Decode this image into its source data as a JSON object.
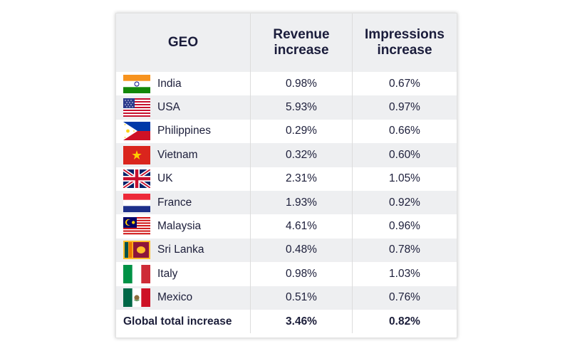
{
  "table": {
    "headers": {
      "geo": "GEO",
      "revenue": "Revenue increase",
      "impressions": "Impressions increase"
    },
    "rows": [
      {
        "country": "India",
        "flag": "india-flag-icon",
        "revenue": "0.98%",
        "impressions": "0.67%"
      },
      {
        "country": "USA",
        "flag": "usa-flag-icon",
        "revenue": "5.93%",
        "impressions": "0.97%"
      },
      {
        "country": "Philippines",
        "flag": "philippines-flag-icon",
        "revenue": "0.29%",
        "impressions": "0.66%"
      },
      {
        "country": "Vietnam",
        "flag": "vietnam-flag-icon",
        "revenue": "0.32%",
        "impressions": "0.60%"
      },
      {
        "country": "UK",
        "flag": "uk-flag-icon",
        "revenue": "2.31%",
        "impressions": "1.05%"
      },
      {
        "country": "France",
        "flag": "france-flag-icon",
        "revenue": "1.93%",
        "impressions": "0.92%"
      },
      {
        "country": "Malaysia",
        "flag": "malaysia-flag-icon",
        "revenue": "4.61%",
        "impressions": "0.96%"
      },
      {
        "country": "Sri Lanka",
        "flag": "sri-lanka-flag-icon",
        "revenue": "0.48%",
        "impressions": "0.78%"
      },
      {
        "country": "Italy",
        "flag": "italy-flag-icon",
        "revenue": "0.98%",
        "impressions": "1.03%"
      },
      {
        "country": "Mexico",
        "flag": "mexico-flag-icon",
        "revenue": "0.51%",
        "impressions": "0.76%"
      }
    ],
    "total": {
      "label": "Global total increase",
      "revenue": "3.46%",
      "impressions": "0.82%"
    }
  }
}
